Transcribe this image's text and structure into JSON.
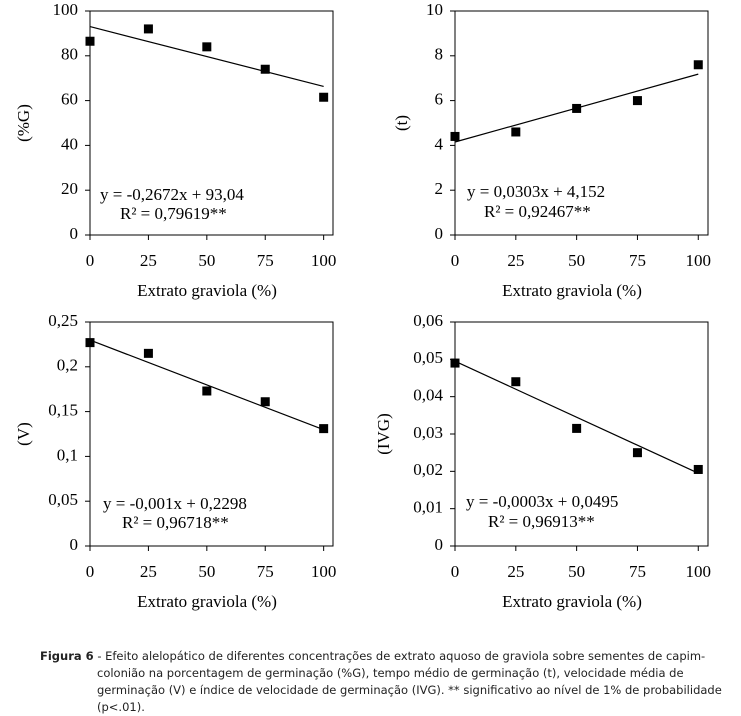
{
  "chart_data": [
    {
      "type": "scatter",
      "y_label": "(%G)",
      "x_label": "Extrato graviola (%)",
      "x": [
        0,
        25,
        50,
        75,
        100
      ],
      "values": [
        86.5,
        92,
        84,
        74,
        61.5
      ],
      "color": "#000000",
      "trend": {
        "x": [
          0,
          100
        ],
        "y": [
          93.04,
          66.32
        ]
      },
      "equation": "y = -0,2672x + 93,04",
      "r2": "R² = 0,79619**",
      "xlim": [
        0,
        104
      ],
      "xticks": [
        0,
        25,
        50,
        75,
        100
      ],
      "ylim": [
        0,
        100
      ],
      "yticks": [
        0,
        20,
        40,
        60,
        80,
        100
      ]
    },
    {
      "type": "scatter",
      "y_label": "(t)",
      "x_label": "Extrato graviola (%)",
      "x": [
        0,
        25,
        50,
        75,
        100
      ],
      "values": [
        4.4,
        4.6,
        5.65,
        6.0,
        7.6
      ],
      "color": "#000000",
      "trend": {
        "x": [
          0,
          100
        ],
        "y": [
          4.152,
          7.182
        ]
      },
      "equation": "y = 0,0303x + 4,152",
      "r2": "R² = 0,92467**",
      "xlim": [
        0,
        104
      ],
      "xticks": [
        0,
        25,
        50,
        75,
        100
      ],
      "ylim": [
        0,
        10
      ],
      "yticks": [
        0,
        2,
        4,
        6,
        8,
        10
      ]
    },
    {
      "type": "scatter",
      "y_label": "(V)",
      "x_label": "Extrato graviola (%)",
      "x": [
        0,
        25,
        50,
        75,
        100
      ],
      "values": [
        0.227,
        0.215,
        0.173,
        0.161,
        0.131
      ],
      "color": "#000000",
      "trend": {
        "x": [
          0,
          100
        ],
        "y": [
          0.2298,
          0.1298
        ]
      },
      "equation": "y = -0,001x + 0,2298",
      "r2": "R² = 0,96718**",
      "xlim": [
        0,
        104
      ],
      "xticks": [
        0,
        25,
        50,
        75,
        100
      ],
      "ylim": [
        0,
        0.25
      ],
      "yticks": [
        0,
        {
          "value": 0.05,
          "label": "0,05"
        },
        {
          "value": 0.1,
          "label": "0,1"
        },
        {
          "value": 0.15,
          "label": "0,15"
        },
        {
          "value": 0.2,
          "label": "0,2"
        },
        {
          "value": 0.25,
          "label": "0,25"
        }
      ]
    },
    {
      "type": "scatter",
      "y_label": "(IVG)",
      "x_label": "Extrato graviola (%)",
      "x": [
        0,
        25,
        50,
        75,
        100
      ],
      "values": [
        0.049,
        0.044,
        0.0315,
        0.025,
        0.0205
      ],
      "color": "#000000",
      "trend": {
        "x": [
          0,
          100
        ],
        "y": [
          0.0495,
          0.0195
        ]
      },
      "equation": "y = -0,0003x + 0,0495",
      "r2": "R² = 0,96913**",
      "xlim": [
        0,
        104
      ],
      "xticks": [
        0,
        25,
        50,
        75,
        100
      ],
      "ylim": [
        0,
        0.06
      ],
      "yticks": [
        0,
        {
          "value": 0.01,
          "label": "0,01"
        },
        {
          "value": 0.02,
          "label": "0,02"
        },
        {
          "value": 0.03,
          "label": "0,03"
        },
        {
          "value": 0.04,
          "label": "0,04"
        },
        {
          "value": 0.05,
          "label": "0,05"
        },
        {
          "value": 0.06,
          "label": "0,06"
        }
      ]
    }
  ],
  "caption": {
    "label": "Figura 6",
    "text": "- Efeito alelopático de diferentes concentrações de extrato aquoso de graviola sobre sementes de capim-colonião na porcentagem de germinação (%G), tempo médio de germinação (t), velocidade média de germinação (V) e índice de velocidade de germinação (IVG). ** significativo ao nível de 1% de probabilidade (p<.01)."
  }
}
